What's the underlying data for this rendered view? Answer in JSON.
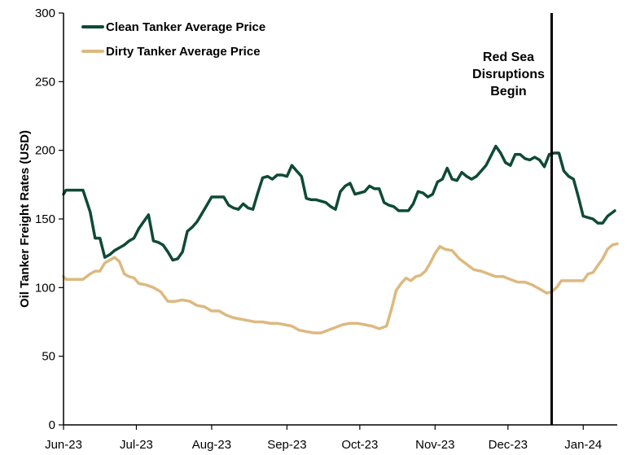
{
  "chart_data": {
    "type": "line",
    "title": "",
    "xlabel": "",
    "ylabel": "Oil Tanker Freight Rates (USD)",
    "ylim": [
      0,
      300
    ],
    "yticks": [
      "0",
      "50",
      "100",
      "150",
      "200",
      "250",
      "300"
    ],
    "x_tick_labels": [
      "Jun-23",
      "Jul-23",
      "Aug-23",
      "Sep-23",
      "Oct-23",
      "Nov-23",
      "Dec-23",
      "Jan-24"
    ],
    "x_range": [
      "2023-06-01",
      "2024-01-15"
    ],
    "grid": false,
    "legend": "top-left",
    "series": [
      {
        "name": "Clean Tanker Average Price",
        "color": "#0f4a36",
        "points": [
          [
            "2023-06-01",
            168
          ],
          [
            "2023-06-02",
            171
          ],
          [
            "2023-06-05",
            171
          ],
          [
            "2023-06-09",
            171
          ],
          [
            "2023-06-12",
            155
          ],
          [
            "2023-06-14",
            136
          ],
          [
            "2023-06-16",
            136
          ],
          [
            "2023-06-18",
            122
          ],
          [
            "2023-06-20",
            124
          ],
          [
            "2023-06-22",
            127
          ],
          [
            "2023-06-24",
            129
          ],
          [
            "2023-06-26",
            131
          ],
          [
            "2023-06-28",
            134
          ],
          [
            "2023-06-30",
            136
          ],
          [
            "2023-07-02",
            143
          ],
          [
            "2023-07-04",
            148
          ],
          [
            "2023-07-06",
            153
          ],
          [
            "2023-07-08",
            134
          ],
          [
            "2023-07-10",
            133
          ],
          [
            "2023-07-12",
            131
          ],
          [
            "2023-07-14",
            126
          ],
          [
            "2023-07-16",
            120
          ],
          [
            "2023-07-18",
            121
          ],
          [
            "2023-07-20",
            126
          ],
          [
            "2023-07-22",
            141
          ],
          [
            "2023-07-24",
            144
          ],
          [
            "2023-07-26",
            148
          ],
          [
            "2023-07-28",
            154
          ],
          [
            "2023-07-30",
            160
          ],
          [
            "2023-08-01",
            166
          ],
          [
            "2023-08-03",
            166
          ],
          [
            "2023-08-06",
            166
          ],
          [
            "2023-08-08",
            160
          ],
          [
            "2023-08-10",
            158
          ],
          [
            "2023-08-12",
            157
          ],
          [
            "2023-08-14",
            161
          ],
          [
            "2023-08-16",
            158
          ],
          [
            "2023-08-18",
            157
          ],
          [
            "2023-08-20",
            169
          ],
          [
            "2023-08-22",
            180
          ],
          [
            "2023-08-24",
            181
          ],
          [
            "2023-08-26",
            179
          ],
          [
            "2023-08-28",
            182
          ],
          [
            "2023-08-30",
            182
          ],
          [
            "2023-09-01",
            181
          ],
          [
            "2023-09-03",
            189
          ],
          [
            "2023-09-05",
            185
          ],
          [
            "2023-09-07",
            181
          ],
          [
            "2023-09-09",
            165
          ],
          [
            "2023-09-11",
            164
          ],
          [
            "2023-09-13",
            164
          ],
          [
            "2023-09-15",
            163
          ],
          [
            "2023-09-17",
            162
          ],
          [
            "2023-09-19",
            159
          ],
          [
            "2023-09-21",
            157
          ],
          [
            "2023-09-23",
            170
          ],
          [
            "2023-09-25",
            174
          ],
          [
            "2023-09-27",
            176
          ],
          [
            "2023-09-29",
            168
          ],
          [
            "2023-10-01",
            169
          ],
          [
            "2023-10-03",
            170
          ],
          [
            "2023-10-05",
            174
          ],
          [
            "2023-10-07",
            172
          ],
          [
            "2023-10-09",
            172
          ],
          [
            "2023-10-11",
            162
          ],
          [
            "2023-10-13",
            160
          ],
          [
            "2023-10-15",
            159
          ],
          [
            "2023-10-17",
            156
          ],
          [
            "2023-10-19",
            156
          ],
          [
            "2023-10-21",
            156
          ],
          [
            "2023-10-23",
            161
          ],
          [
            "2023-10-25",
            170
          ],
          [
            "2023-10-27",
            169
          ],
          [
            "2023-10-29",
            166
          ],
          [
            "2023-10-31",
            168
          ],
          [
            "2023-11-02",
            177
          ],
          [
            "2023-11-04",
            179
          ],
          [
            "2023-11-06",
            187
          ],
          [
            "2023-11-08",
            179
          ],
          [
            "2023-11-10",
            178
          ],
          [
            "2023-11-12",
            184
          ],
          [
            "2023-11-14",
            181
          ],
          [
            "2023-11-16",
            179
          ],
          [
            "2023-11-18",
            181
          ],
          [
            "2023-11-20",
            185
          ],
          [
            "2023-11-22",
            189
          ],
          [
            "2023-11-24",
            196
          ],
          [
            "2023-11-26",
            203
          ],
          [
            "2023-11-28",
            198
          ],
          [
            "2023-11-30",
            191
          ],
          [
            "2023-12-02",
            189
          ],
          [
            "2023-12-04",
            197
          ],
          [
            "2023-12-06",
            197
          ],
          [
            "2023-12-08",
            194
          ],
          [
            "2023-12-10",
            193
          ],
          [
            "2023-12-12",
            195
          ],
          [
            "2023-12-14",
            193
          ],
          [
            "2023-12-16",
            188
          ],
          [
            "2023-12-18",
            197
          ],
          [
            "2023-12-20",
            198
          ],
          [
            "2023-12-22",
            198
          ],
          [
            "2023-12-24",
            185
          ],
          [
            "2023-12-26",
            181
          ],
          [
            "2023-12-28",
            179
          ],
          [
            "2023-12-30",
            166
          ],
          [
            "2024-01-01",
            152
          ],
          [
            "2024-01-03",
            151
          ],
          [
            "2024-01-05",
            150
          ],
          [
            "2024-01-07",
            147
          ],
          [
            "2024-01-09",
            147
          ],
          [
            "2024-01-11",
            152
          ],
          [
            "2024-01-14",
            156
          ]
        ]
      },
      {
        "name": "Dirty Tanker Average Price",
        "color": "#ddb97f",
        "points": [
          [
            "2023-06-01",
            108
          ],
          [
            "2023-06-02",
            106
          ],
          [
            "2023-06-05",
            106
          ],
          [
            "2023-06-09",
            106
          ],
          [
            "2023-06-12",
            110
          ],
          [
            "2023-06-14",
            112
          ],
          [
            "2023-06-16",
            112
          ],
          [
            "2023-06-18",
            118
          ],
          [
            "2023-06-20",
            120
          ],
          [
            "2023-06-22",
            122
          ],
          [
            "2023-06-24",
            119
          ],
          [
            "2023-06-26",
            110
          ],
          [
            "2023-06-28",
            108
          ],
          [
            "2023-06-30",
            107
          ],
          [
            "2023-07-02",
            103
          ],
          [
            "2023-07-05",
            102
          ],
          [
            "2023-07-08",
            100
          ],
          [
            "2023-07-11",
            97
          ],
          [
            "2023-07-14",
            90
          ],
          [
            "2023-07-17",
            90
          ],
          [
            "2023-07-20",
            91
          ],
          [
            "2023-07-23",
            90
          ],
          [
            "2023-07-26",
            87
          ],
          [
            "2023-07-29",
            86
          ],
          [
            "2023-08-01",
            83
          ],
          [
            "2023-08-04",
            83
          ],
          [
            "2023-08-07",
            80
          ],
          [
            "2023-08-10",
            78
          ],
          [
            "2023-08-13",
            77
          ],
          [
            "2023-08-16",
            76
          ],
          [
            "2023-08-19",
            75
          ],
          [
            "2023-08-22",
            75
          ],
          [
            "2023-08-25",
            74
          ],
          [
            "2023-08-28",
            74
          ],
          [
            "2023-08-31",
            73
          ],
          [
            "2023-09-03",
            72
          ],
          [
            "2023-09-06",
            69
          ],
          [
            "2023-09-09",
            68
          ],
          [
            "2023-09-12",
            67
          ],
          [
            "2023-09-15",
            67
          ],
          [
            "2023-09-18",
            69
          ],
          [
            "2023-09-21",
            71
          ],
          [
            "2023-09-24",
            73
          ],
          [
            "2023-09-27",
            74
          ],
          [
            "2023-09-30",
            74
          ],
          [
            "2023-10-03",
            73
          ],
          [
            "2023-10-06",
            72
          ],
          [
            "2023-10-09",
            70
          ],
          [
            "2023-10-12",
            72
          ],
          [
            "2023-10-14",
            84
          ],
          [
            "2023-10-16",
            98
          ],
          [
            "2023-10-18",
            103
          ],
          [
            "2023-10-20",
            107
          ],
          [
            "2023-10-22",
            105
          ],
          [
            "2023-10-24",
            108
          ],
          [
            "2023-10-26",
            109
          ],
          [
            "2023-10-28",
            112
          ],
          [
            "2023-10-30",
            118
          ],
          [
            "2023-11-01",
            125
          ],
          [
            "2023-11-03",
            130
          ],
          [
            "2023-11-05",
            128
          ],
          [
            "2023-11-08",
            127
          ],
          [
            "2023-11-11",
            121
          ],
          [
            "2023-11-14",
            117
          ],
          [
            "2023-11-17",
            113
          ],
          [
            "2023-11-20",
            112
          ],
          [
            "2023-11-23",
            110
          ],
          [
            "2023-11-26",
            108
          ],
          [
            "2023-11-29",
            108
          ],
          [
            "2023-12-02",
            106
          ],
          [
            "2023-12-05",
            104
          ],
          [
            "2023-12-08",
            104
          ],
          [
            "2023-12-11",
            102
          ],
          [
            "2023-12-14",
            99
          ],
          [
            "2023-12-17",
            96
          ],
          [
            "2023-12-19",
            97
          ],
          [
            "2023-12-21",
            100
          ],
          [
            "2023-12-23",
            105
          ],
          [
            "2023-12-26",
            105
          ],
          [
            "2023-12-29",
            105
          ],
          [
            "2024-01-01",
            105
          ],
          [
            "2024-01-03",
            110
          ],
          [
            "2024-01-05",
            111
          ],
          [
            "2024-01-07",
            116
          ],
          [
            "2024-01-09",
            121
          ],
          [
            "2024-01-11",
            128
          ],
          [
            "2024-01-13",
            131
          ],
          [
            "2024-01-15",
            132
          ]
        ]
      }
    ],
    "annotations": [
      {
        "x": "2023-12-19",
        "lines": [
          "Red Sea",
          "Disruptions",
          "Begin"
        ]
      }
    ]
  }
}
